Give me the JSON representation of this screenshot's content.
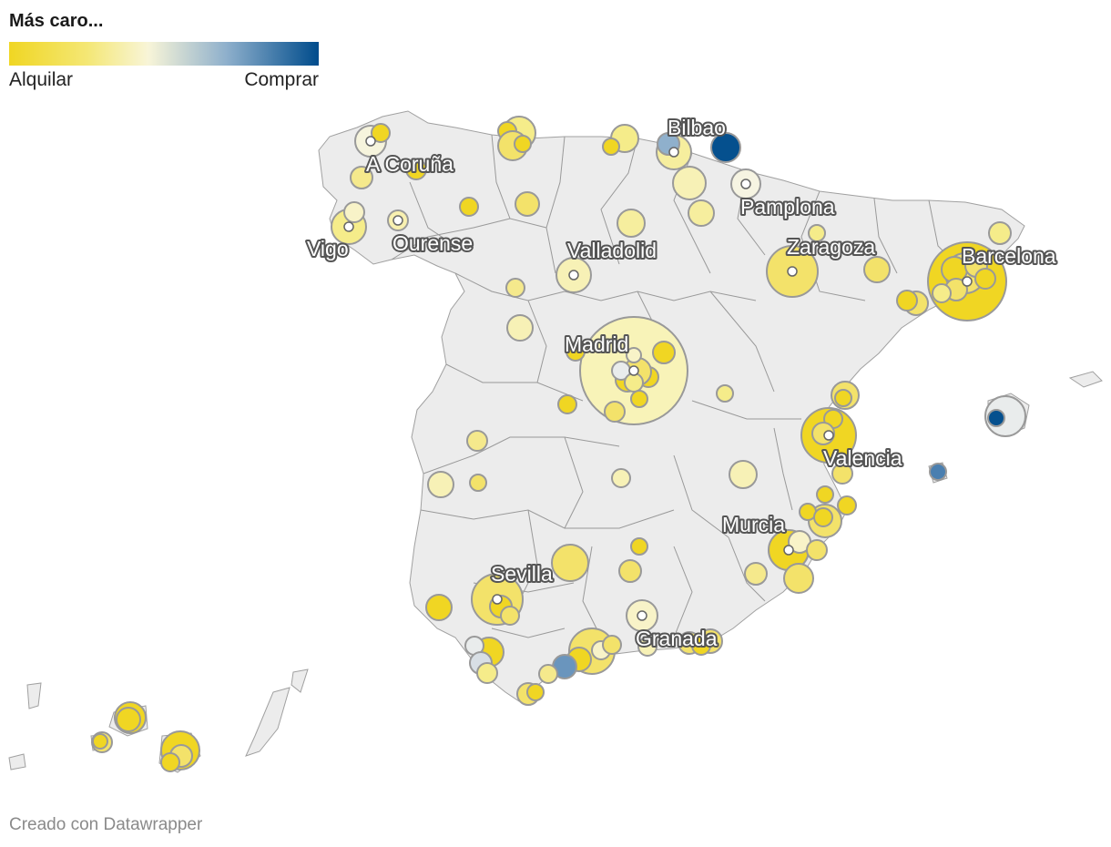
{
  "legend": {
    "title": "Más caro...",
    "left_label": "Alquilar",
    "right_label": "Comprar",
    "gradient": [
      "#f0d623",
      "#f7f2a8",
      "#f5f5ee",
      "#8fb0cc",
      "#004c8c"
    ]
  },
  "credit": "Creado con Datawrapper",
  "colors": {
    "land": "#ececec",
    "border": "#999999",
    "bubble_stroke": "#999999",
    "strong_rent": "#f0d623",
    "mild_rent": "#f5ec8a",
    "light_rent": "#f8f3b8",
    "neutral": "#e9ecec",
    "mild_buy": "#8fb0cc",
    "medium_buy": "#4a7fb0",
    "strong_buy": "#05508e"
  },
  "cities": [
    {
      "name": "Bilbao"
    },
    {
      "name": "A Coruña"
    },
    {
      "name": "Pamplona"
    },
    {
      "name": "Vigo"
    },
    {
      "name": "Ourense"
    },
    {
      "name": "Zaragoza"
    },
    {
      "name": "Valladolid"
    },
    {
      "name": "Barcelona"
    },
    {
      "name": "Madrid"
    },
    {
      "name": "Valencia"
    },
    {
      "name": "Murcia"
    },
    {
      "name": "Sevilla"
    },
    {
      "name": "Granada"
    }
  ]
}
